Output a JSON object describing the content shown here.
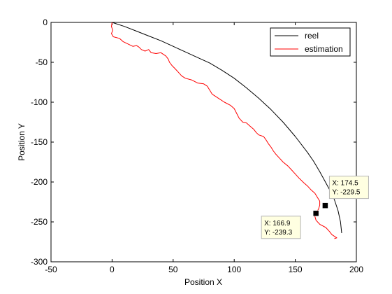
{
  "chart_data": {
    "type": "line",
    "title": "",
    "xlabel": "Position X",
    "ylabel": "Position Y",
    "xlim": [
      -50,
      200
    ],
    "ylim": [
      -300,
      0
    ],
    "xticks": [
      "-50",
      "0",
      "50",
      "100",
      "150",
      "200"
    ],
    "yticks": [
      "0",
      "-50",
      "-100",
      "-150",
      "-200",
      "-250",
      "-300"
    ],
    "grid": false,
    "legend_position": "top-right",
    "series": [
      {
        "name": "reel",
        "color": "#000000",
        "points": [
          [
            0,
            0
          ],
          [
            10,
            -5
          ],
          [
            20,
            -11
          ],
          [
            30,
            -17
          ],
          [
            40,
            -23
          ],
          [
            50,
            -30
          ],
          [
            60,
            -37
          ],
          [
            70,
            -44
          ],
          [
            80,
            -51
          ],
          [
            90,
            -60
          ],
          [
            100,
            -70
          ],
          [
            110,
            -82
          ],
          [
            120,
            -95
          ],
          [
            130,
            -109
          ],
          [
            140,
            -125
          ],
          [
            150,
            -143
          ],
          [
            160,
            -163
          ],
          [
            165,
            -174
          ],
          [
            170,
            -187
          ],
          [
            175,
            -201
          ],
          [
            180,
            -215
          ],
          [
            182,
            -222
          ],
          [
            185,
            -236
          ],
          [
            187,
            -250
          ],
          [
            188,
            -264
          ]
        ]
      },
      {
        "name": "estimation",
        "color": "#ff0000",
        "points": [
          [
            0,
            0
          ],
          [
            -0.5,
            -5
          ],
          [
            0.5,
            -10
          ],
          [
            -0.5,
            -14
          ],
          [
            1,
            -18
          ],
          [
            6,
            -20
          ],
          [
            9,
            -24
          ],
          [
            13,
            -27
          ],
          [
            17,
            -30
          ],
          [
            20,
            -29
          ],
          [
            22,
            -31
          ],
          [
            24,
            -34
          ],
          [
            27,
            -36
          ],
          [
            30,
            -34
          ],
          [
            32,
            -38
          ],
          [
            36,
            -39
          ],
          [
            40,
            -38
          ],
          [
            44,
            -42
          ],
          [
            46,
            -46
          ],
          [
            47,
            -50
          ],
          [
            49,
            -54
          ],
          [
            51,
            -57
          ],
          [
            54,
            -62
          ],
          [
            57,
            -67
          ],
          [
            60,
            -70
          ],
          [
            65,
            -72
          ],
          [
            70,
            -76
          ],
          [
            75,
            -77
          ],
          [
            78,
            -80
          ],
          [
            80,
            -85
          ],
          [
            82,
            -90
          ],
          [
            88,
            -96
          ],
          [
            92,
            -100
          ],
          [
            97,
            -104
          ],
          [
            100,
            -108
          ],
          [
            102,
            -114
          ],
          [
            104,
            -120
          ],
          [
            107,
            -125
          ],
          [
            110,
            -126
          ],
          [
            113,
            -130
          ],
          [
            116,
            -134
          ],
          [
            118,
            -138
          ],
          [
            120,
            -141
          ],
          [
            124,
            -143
          ],
          [
            126,
            -147
          ],
          [
            128,
            -152
          ],
          [
            130,
            -156
          ],
          [
            132,
            -161
          ],
          [
            134,
            -165
          ],
          [
            137,
            -170
          ],
          [
            140,
            -175
          ],
          [
            144,
            -180
          ],
          [
            147,
            -185
          ],
          [
            150,
            -190
          ],
          [
            153,
            -195
          ],
          [
            157,
            -201
          ],
          [
            160,
            -205
          ],
          [
            163,
            -210
          ],
          [
            166,
            -214
          ],
          [
            168,
            -219
          ],
          [
            170,
            -224
          ],
          [
            170,
            -229
          ],
          [
            169,
            -234
          ],
          [
            167,
            -239
          ],
          [
            166,
            -243
          ],
          [
            167,
            -248
          ],
          [
            170,
            -253
          ],
          [
            175,
            -257
          ],
          [
            178,
            -262
          ],
          [
            180,
            -266
          ],
          [
            184,
            -270
          ],
          [
            182,
            -271
          ]
        ]
      }
    ],
    "annotations": [
      {
        "x_text": "X: 174.5",
        "y_text": "Y: -229.5",
        "x": 174.5,
        "y": -229.5
      },
      {
        "x_text": "X: 166.9",
        "y_text": "Y: -239.3",
        "x": 166.9,
        "y": -239.3
      }
    ]
  }
}
